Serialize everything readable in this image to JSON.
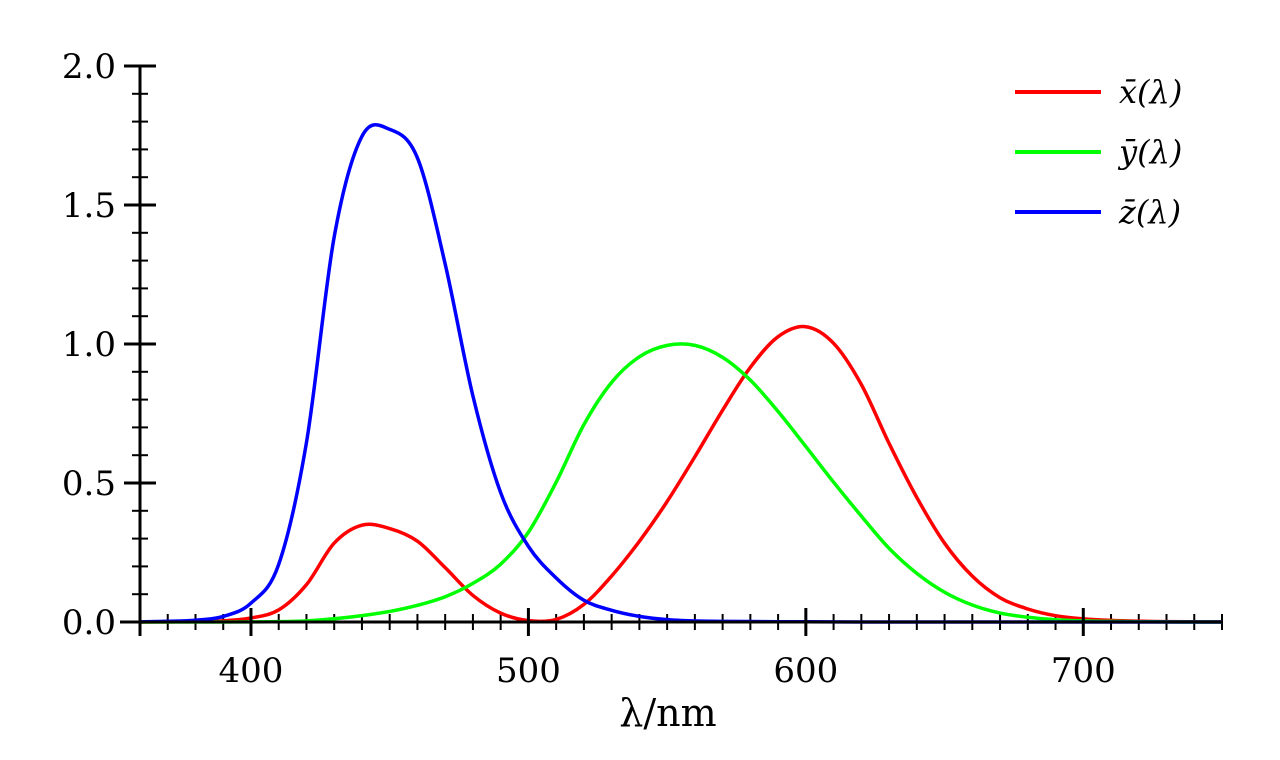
{
  "chart_data": {
    "type": "line",
    "title": "",
    "xlabel": "λ/nm",
    "ylabel": "",
    "xlim": [
      360,
      750
    ],
    "ylim": [
      0,
      2.0
    ],
    "grid": false,
    "legend_position": "top-right",
    "x_ticks": [
      400,
      500,
      600,
      700
    ],
    "x_tick_labels": [
      "400",
      "500",
      "600",
      "700"
    ],
    "y_ticks": [
      0.0,
      0.5,
      1.0,
      1.5,
      2.0
    ],
    "y_tick_labels": [
      "0.0",
      "0.5",
      "1.0",
      "1.5",
      "2.0"
    ],
    "x": [
      360,
      370,
      380,
      390,
      400,
      410,
      420,
      430,
      440,
      450,
      460,
      470,
      480,
      490,
      500,
      510,
      520,
      530,
      540,
      550,
      560,
      570,
      580,
      590,
      600,
      610,
      620,
      630,
      640,
      650,
      660,
      670,
      680,
      690,
      700,
      710,
      720,
      730,
      740,
      750
    ],
    "series": [
      {
        "name": "x̄(λ)",
        "color": "#ff0000",
        "values": [
          0.0001,
          0.0006,
          0.0014,
          0.0042,
          0.0143,
          0.0435,
          0.1344,
          0.2839,
          0.3483,
          0.3362,
          0.2908,
          0.1954,
          0.0956,
          0.032,
          0.0049,
          0.0093,
          0.0633,
          0.1655,
          0.2904,
          0.4334,
          0.5945,
          0.7621,
          0.9163,
          1.0263,
          1.0622,
          1.0026,
          0.8544,
          0.6424,
          0.4479,
          0.2835,
          0.1649,
          0.0874,
          0.0468,
          0.0227,
          0.0114,
          0.0058,
          0.0029,
          0.0014,
          0.0007,
          0.0003
        ]
      },
      {
        "name": "ȳ(λ)",
        "color": "#00ff00",
        "values": [
          0.0,
          0.0,
          0.0,
          0.0001,
          0.0004,
          0.0012,
          0.004,
          0.0116,
          0.023,
          0.038,
          0.06,
          0.091,
          0.139,
          0.208,
          0.323,
          0.503,
          0.71,
          0.862,
          0.954,
          0.995,
          0.995,
          0.952,
          0.87,
          0.757,
          0.631,
          0.503,
          0.381,
          0.265,
          0.175,
          0.107,
          0.061,
          0.032,
          0.017,
          0.0082,
          0.0041,
          0.0021,
          0.001,
          0.0005,
          0.0002,
          0.0001
        ]
      },
      {
        "name": "z̄(λ)",
        "color": "#0000ff",
        "values": [
          0.0006,
          0.0026,
          0.0065,
          0.0201,
          0.0679,
          0.2074,
          0.6456,
          1.3856,
          1.7471,
          1.7721,
          1.6692,
          1.2876,
          0.813,
          0.4652,
          0.272,
          0.1582,
          0.0782,
          0.0422,
          0.0203,
          0.0087,
          0.0039,
          0.0021,
          0.0017,
          0.0011,
          0.0008,
          0.0003,
          0.0002,
          0.0,
          0.0,
          0.0,
          0.0,
          0.0,
          0.0,
          0.0,
          0.0,
          0.0,
          0.0,
          0.0,
          0.0,
          0.0
        ]
      }
    ]
  }
}
